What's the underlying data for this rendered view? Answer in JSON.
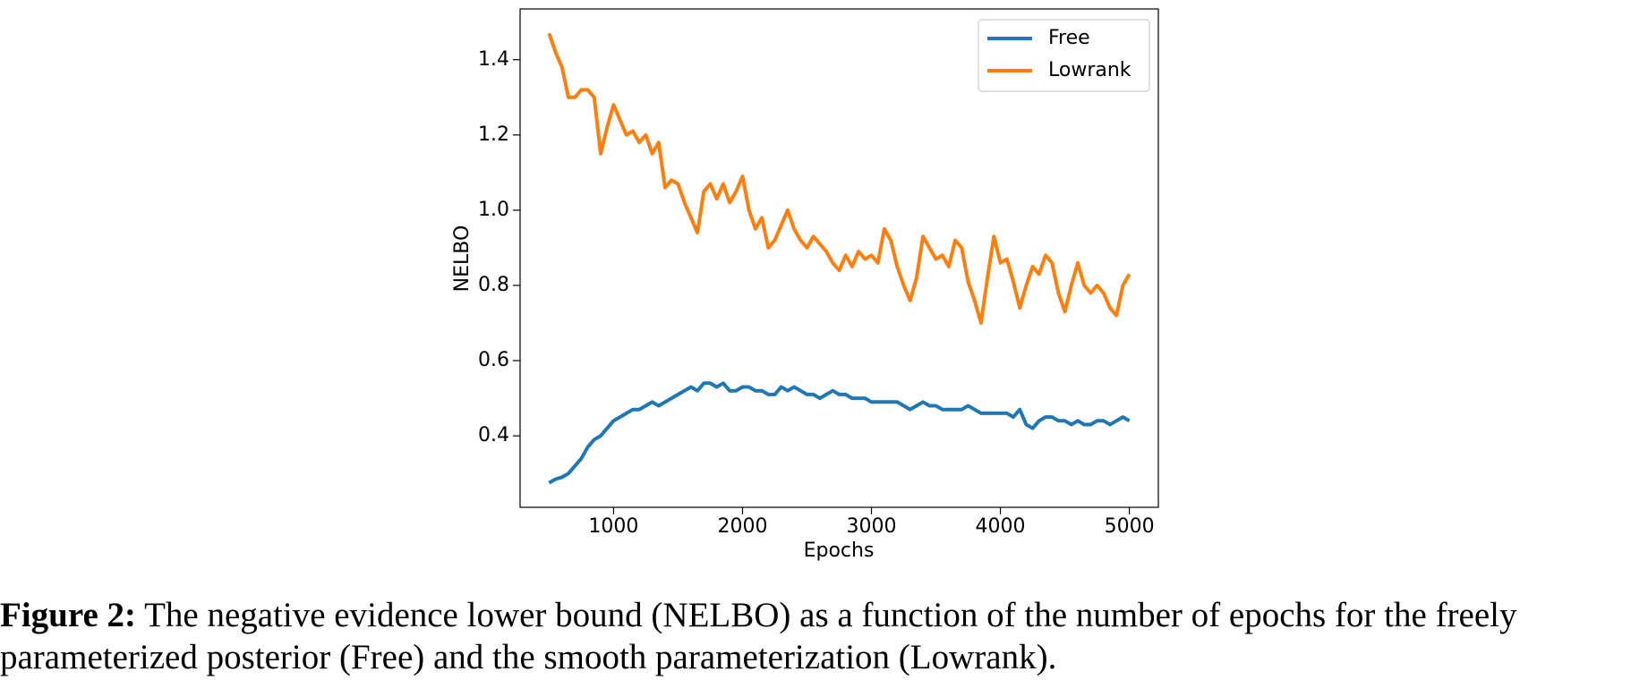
{
  "chart_data": {
    "type": "line",
    "xlabel": "Epochs",
    "ylabel": "NELBO",
    "x": [
      500,
      550,
      600,
      650,
      700,
      750,
      800,
      850,
      900,
      950,
      1000,
      1050,
      1100,
      1150,
      1200,
      1250,
      1300,
      1350,
      1400,
      1450,
      1500,
      1550,
      1600,
      1650,
      1700,
      1750,
      1800,
      1850,
      1900,
      1950,
      2000,
      2050,
      2100,
      2150,
      2200,
      2250,
      2300,
      2350,
      2400,
      2450,
      2500,
      2550,
      2600,
      2650,
      2700,
      2750,
      2800,
      2850,
      2900,
      2950,
      3000,
      3050,
      3100,
      3150,
      3200,
      3250,
      3300,
      3350,
      3400,
      3450,
      3500,
      3550,
      3600,
      3650,
      3700,
      3750,
      3800,
      3850,
      3900,
      3950,
      4000,
      4050,
      4100,
      4150,
      4200,
      4250,
      4300,
      4350,
      4400,
      4450,
      4500,
      4550,
      4600,
      4650,
      4700,
      4750,
      4800,
      4850,
      4900,
      4950,
      5000
    ],
    "series": [
      {
        "name": "Free",
        "color": "#1f77b4",
        "values": [
          0.275,
          0.285,
          0.29,
          0.3,
          0.32,
          0.34,
          0.37,
          0.39,
          0.4,
          0.42,
          0.44,
          0.45,
          0.46,
          0.47,
          0.47,
          0.48,
          0.49,
          0.48,
          0.49,
          0.5,
          0.51,
          0.52,
          0.53,
          0.52,
          0.54,
          0.54,
          0.53,
          0.54,
          0.52,
          0.52,
          0.53,
          0.53,
          0.52,
          0.52,
          0.51,
          0.51,
          0.53,
          0.52,
          0.53,
          0.52,
          0.51,
          0.51,
          0.5,
          0.51,
          0.52,
          0.51,
          0.51,
          0.5,
          0.5,
          0.5,
          0.49,
          0.49,
          0.49,
          0.49,
          0.49,
          0.48,
          0.47,
          0.48,
          0.49,
          0.48,
          0.48,
          0.47,
          0.47,
          0.47,
          0.47,
          0.48,
          0.47,
          0.46,
          0.46,
          0.46,
          0.46,
          0.46,
          0.45,
          0.47,
          0.43,
          0.42,
          0.44,
          0.45,
          0.45,
          0.44,
          0.44,
          0.43,
          0.44,
          0.43,
          0.43,
          0.44,
          0.44,
          0.43,
          0.44,
          0.45,
          0.44
        ]
      },
      {
        "name": "Lowrank",
        "color": "#ff7f0e",
        "values": [
          1.47,
          1.42,
          1.38,
          1.3,
          1.3,
          1.32,
          1.32,
          1.3,
          1.15,
          1.22,
          1.28,
          1.24,
          1.2,
          1.21,
          1.18,
          1.2,
          1.15,
          1.18,
          1.06,
          1.08,
          1.07,
          1.02,
          0.98,
          0.94,
          1.05,
          1.07,
          1.03,
          1.07,
          1.02,
          1.05,
          1.09,
          1.0,
          0.95,
          0.98,
          0.9,
          0.92,
          0.96,
          1.0,
          0.95,
          0.92,
          0.9,
          0.93,
          0.91,
          0.89,
          0.86,
          0.84,
          0.88,
          0.85,
          0.89,
          0.87,
          0.88,
          0.86,
          0.95,
          0.92,
          0.85,
          0.8,
          0.76,
          0.82,
          0.93,
          0.9,
          0.87,
          0.88,
          0.85,
          0.92,
          0.9,
          0.81,
          0.76,
          0.7,
          0.82,
          0.93,
          0.86,
          0.87,
          0.81,
          0.74,
          0.8,
          0.85,
          0.83,
          0.88,
          0.86,
          0.78,
          0.73,
          0.8,
          0.86,
          0.8,
          0.78,
          0.8,
          0.78,
          0.74,
          0.72,
          0.8,
          0.83
        ]
      }
    ],
    "xlim": [
      275,
      5225
    ],
    "ylim": [
      0.21,
      1.535
    ],
    "xticks": [
      1000,
      2000,
      3000,
      4000,
      5000
    ],
    "yticks": [
      0.4,
      0.6,
      0.8,
      {
        "value": 1,
        "label": "1.0"
      },
      1.2,
      1.4
    ],
    "grid": false,
    "legend": "upper right",
    "caption": {
      "label": "Figure 2:",
      "text": "The negative evidence lower bound (NELBO) as a function of the number of epochs for the freely parameterized posterior (Free) and the smooth parameterization (Lowrank)."
    }
  }
}
